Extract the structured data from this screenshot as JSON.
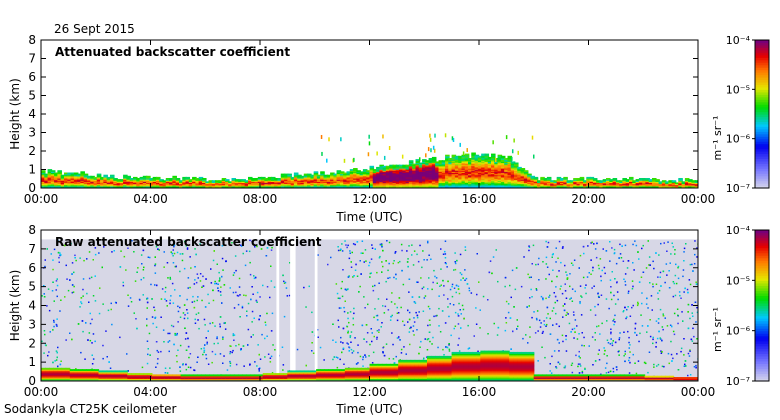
{
  "header": {
    "date": "26 Sept 2015"
  },
  "footer": {
    "station": "Sodankyla CT25K ceilometer"
  },
  "chart_data": [
    {
      "type": "heatmap",
      "title": "Attenuated backscatter coefficient",
      "xlabel": "Time (UTC)",
      "ylabel": "Height (km)",
      "xlim_hours": [
        0,
        24
      ],
      "x_ticks": [
        "00:00",
        "04:00",
        "08:00",
        "12:00",
        "16:00",
        "20:00",
        "00:00"
      ],
      "ylim": [
        0,
        8
      ],
      "y_ticks": [
        "0",
        "1",
        "2",
        "3",
        "4",
        "5",
        "6",
        "7",
        "8"
      ],
      "colorbar": {
        "label": "m⁻¹ sr⁻¹",
        "scale": "log",
        "min": "10⁻⁷",
        "max": "10⁻⁴",
        "ticks": [
          "10⁻⁷",
          "10⁻⁶",
          "10⁻⁵",
          "10⁻⁴"
        ]
      },
      "boundary_layer_km": [
        [
          0,
          0.7
        ],
        [
          1,
          0.6
        ],
        [
          2,
          0.5
        ],
        [
          3,
          0.4
        ],
        [
          4,
          0.35
        ],
        [
          5,
          0.3
        ],
        [
          6,
          0.3
        ],
        [
          7,
          0.3
        ],
        [
          8,
          0.4
        ],
        [
          9,
          0.5
        ],
        [
          10,
          0.6
        ],
        [
          11,
          0.7
        ],
        [
          12,
          0.9
        ],
        [
          13,
          1.1
        ],
        [
          14,
          1.3
        ],
        [
          15,
          1.5
        ],
        [
          16,
          1.6
        ],
        [
          17,
          1.5
        ],
        [
          18,
          0.3
        ],
        [
          19,
          0.3
        ],
        [
          20,
          0.3
        ],
        [
          21,
          0.3
        ],
        [
          22,
          0.25
        ],
        [
          23,
          0.2
        ],
        [
          24,
          0.2
        ]
      ]
    },
    {
      "type": "heatmap",
      "title": "Raw attenuated backscatter coefficient",
      "xlabel": "Time (UTC)",
      "ylabel": "Height (km)",
      "xlim_hours": [
        0,
        24
      ],
      "x_ticks": [
        "00:00",
        "04:00",
        "08:00",
        "12:00",
        "16:00",
        "20:00",
        "00:00"
      ],
      "ylim": [
        0,
        8
      ],
      "y_ticks": [
        "0",
        "1",
        "2",
        "3",
        "4",
        "5",
        "6",
        "7",
        "8"
      ],
      "colorbar": {
        "label": "m⁻¹ sr⁻¹",
        "scale": "log",
        "min": "10⁻⁷",
        "max": "10⁻⁴",
        "ticks": [
          "10⁻⁷",
          "10⁻⁶",
          "10⁻⁵",
          "10⁻⁴"
        ]
      }
    }
  ],
  "colors": {
    "background": "#ffffff",
    "noise": "#d7d7e6",
    "frame": "#000000"
  }
}
